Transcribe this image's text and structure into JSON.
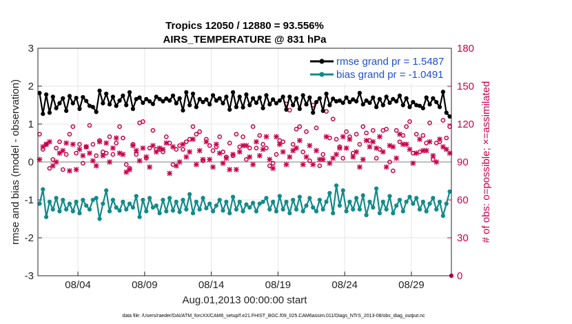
{
  "chart_data": {
    "type": "line",
    "title": "Tropics 12050 / 12880 = 93.556%",
    "subtitle": "AIRS_TEMPERATURE @ 831 hPa",
    "xlabel": "Aug.01,2013 00:00:00 start",
    "ylabel": "rmse and bias (model - observation)",
    "ylabel_right": "# of obs: o=possible; ×=assimilated",
    "footnote": "data file: /Users/raeder/DAI/ATM_forcXX/CAM6_setup/f.e21.FHIST_BGC.f09_025.CAM6assim.011/Diags_NTrS_2013-08/obs_diag_output.nc",
    "x_ticks": [
      "08/04",
      "08/09",
      "08/14",
      "08/19",
      "08/24",
      "08/29"
    ],
    "y_ticks": [
      "3",
      "2",
      "1",
      "0",
      "-1",
      "-2",
      "-3"
    ],
    "y2_ticks": [
      "180",
      "150",
      "120",
      "90",
      "60",
      "30",
      "0"
    ],
    "ylim": [
      -3,
      3
    ],
    "y2lim": [
      0,
      180
    ],
    "xlim": [
      0,
      124
    ],
    "legend": [
      "rmse grand pr = 1.5487",
      "bias grand pr = -1.0491"
    ],
    "series": [
      {
        "name": "rmse",
        "color": "#000000",
        "values": [
          1.82,
          1.27,
          1.78,
          1.3,
          1.72,
          1.42,
          1.55,
          1.68,
          1.35,
          1.74,
          1.55,
          1.69,
          1.4,
          1.71,
          1.61,
          1.48,
          1.45,
          1.32,
          1.88,
          1.55,
          1.8,
          1.52,
          1.72,
          1.48,
          1.62,
          1.75,
          1.5,
          1.84,
          1.4,
          1.66,
          1.7,
          1.56,
          1.66,
          1.6,
          1.53,
          1.72,
          1.66,
          1.6,
          1.67,
          1.62,
          1.75,
          1.55,
          1.68,
          1.36,
          1.84,
          1.5,
          1.8,
          1.45,
          1.66,
          1.58,
          1.65,
          1.52,
          1.76,
          1.62,
          1.68,
          1.55,
          1.72,
          1.38,
          1.84,
          1.45,
          1.72,
          1.44,
          1.78,
          1.5,
          1.68,
          1.56,
          1.7,
          1.42,
          1.76,
          1.52,
          1.65,
          1.55,
          1.62,
          1.72,
          1.38,
          1.72,
          1.5,
          1.68,
          1.4,
          1.76,
          1.52,
          1.7,
          1.3,
          1.58,
          1.68,
          1.35,
          1.8,
          1.5,
          1.67,
          1.6,
          1.62,
          1.56,
          1.7,
          1.58,
          1.65,
          1.6,
          1.82,
          1.52,
          1.62,
          1.56,
          1.7,
          1.45,
          1.66,
          1.5,
          1.72,
          1.56,
          1.66,
          1.6,
          1.75,
          1.5,
          1.68,
          1.45,
          1.58,
          1.5,
          1.48,
          1.42,
          1.7,
          1.52,
          1.68,
          1.58,
          1.45,
          1.85,
          1.3,
          1.2
        ]
      },
      {
        "name": "bias",
        "color": "#138a8a",
        "values": [
          -1.1,
          -0.72,
          -1.45,
          -1.05,
          -1.25,
          -0.95,
          -1.3,
          -1.0,
          -1.25,
          -1.1,
          -1.3,
          -1.05,
          -1.35,
          -1.0,
          -1.15,
          -1.25,
          -1.0,
          -0.95,
          -1.5,
          -1.1,
          -0.75,
          -1.3,
          -1.0,
          -1.2,
          -1.28,
          -1.05,
          -1.25,
          -1.1,
          -1.2,
          -0.9,
          -1.45,
          -1.0,
          -1.3,
          -0.95,
          -1.2,
          -1.15,
          -1.35,
          -1.0,
          -1.3,
          -0.95,
          -1.28,
          -1.05,
          -1.32,
          -1.0,
          -1.25,
          -0.85,
          -1.35,
          -1.05,
          -1.25,
          -0.95,
          -1.22,
          -1.1,
          -1.3,
          -1.15,
          -1.0,
          -1.28,
          -1.05,
          -1.35,
          -0.92,
          -1.25,
          -1.05,
          -1.3,
          -1.12,
          -1.2,
          -1.08,
          -1.3,
          -1.1,
          -1.05,
          -0.95,
          -1.25,
          -1.05,
          -1.3,
          -0.9,
          -1.25,
          -1.05,
          -1.35,
          -1.0,
          -1.25,
          -0.92,
          -1.3,
          -1.15,
          -0.95,
          -1.2,
          -1.3,
          -1.0,
          -1.25,
          -1.05,
          -0.82,
          -1.35,
          -0.62,
          -1.15,
          -0.75,
          -1.3,
          -1.05,
          -1.25,
          -0.95,
          -1.25,
          -0.88,
          -1.4,
          -1.05,
          -1.2,
          -0.7,
          -1.35,
          -1.05,
          -1.25,
          -0.9,
          -1.35,
          -1.15,
          -1.0,
          -1.3,
          -1.05,
          -0.92,
          -1.1,
          -0.95,
          -1.25,
          -1.05,
          -1.3,
          -1.1,
          -0.95,
          -1.25,
          -1.05,
          -1.42,
          -1.1,
          -0.78
        ]
      },
      {
        "name": "obs possible",
        "color": "#c8004a",
        "marker": "o",
        "values": [
          112,
          100,
          104,
          85,
          92,
          101,
          106,
          84,
          96,
          112,
          118,
          97,
          104,
          89,
          102,
          119,
          104,
          95,
          107,
          98,
          97,
          110,
          96,
          105,
          118,
          109,
          88,
          85,
          104,
          96,
          121,
          122,
          93,
          101,
          115,
          100,
          100,
          98,
          110,
          105,
          88,
          100,
          103,
          100,
          106,
          108,
          118,
          112,
          114,
          91,
          108,
          103,
          99,
          102,
          110,
          98,
          94,
          105,
          95,
          112,
          102,
          110,
          92,
          101,
          118,
          101,
          111,
          104,
          101,
          87,
          89,
          96,
          107,
          106,
          136,
          131,
          104,
          116,
          118,
          98,
          114,
          91,
          135,
          117,
          87,
          96,
          130,
          109,
          124,
          108,
          102,
          93,
          114,
          110,
          97,
          112,
          104,
          118,
          113,
          107,
          115,
          93,
          100,
          115,
          116,
          90,
          83,
          115,
          106,
          111,
          118,
          122,
          97,
          112,
          98,
          111,
          105,
          121,
          92,
          105,
          106,
          123,
          109,
          118
        ]
      },
      {
        "name": "obs assimilated",
        "color": "#c8004a",
        "marker": "*",
        "values": [
          92,
          102,
          104,
          106,
          87,
          90,
          97,
          99,
          105,
          83,
          104,
          84,
          100,
          95,
          102,
          97,
          91,
          87,
          106,
          95,
          105,
          90,
          101,
          109,
          97,
          96,
          82,
          84,
          103,
          99,
          91,
          101,
          94,
          86,
          103,
          98,
          101,
          100,
          105,
          81,
          102,
          87,
          90,
          104,
          94,
          98,
          108,
          88,
          99,
          92,
          106,
          92,
          86,
          104,
          97,
          89,
          93,
          84,
          96,
          84,
          98,
          103,
          103,
          94,
          88,
          106,
          95,
          100,
          110,
          92,
          85,
          110,
          104,
          98,
          88,
          94,
          99,
          101,
          107,
          88,
          94,
          103,
          88,
          99,
          92,
          92,
          110,
          89,
          93,
          96,
          101,
          110,
          101,
          108,
          94,
          98,
          86,
          92,
          107,
          102,
          106,
          101,
          110,
          98,
          86,
          103,
          102,
          93,
          112,
          104,
          104,
          100,
          89,
          97,
          108,
          99,
          99,
          106,
          95,
          90,
          108,
          102,
          100,
          97
        ]
      }
    ]
  }
}
